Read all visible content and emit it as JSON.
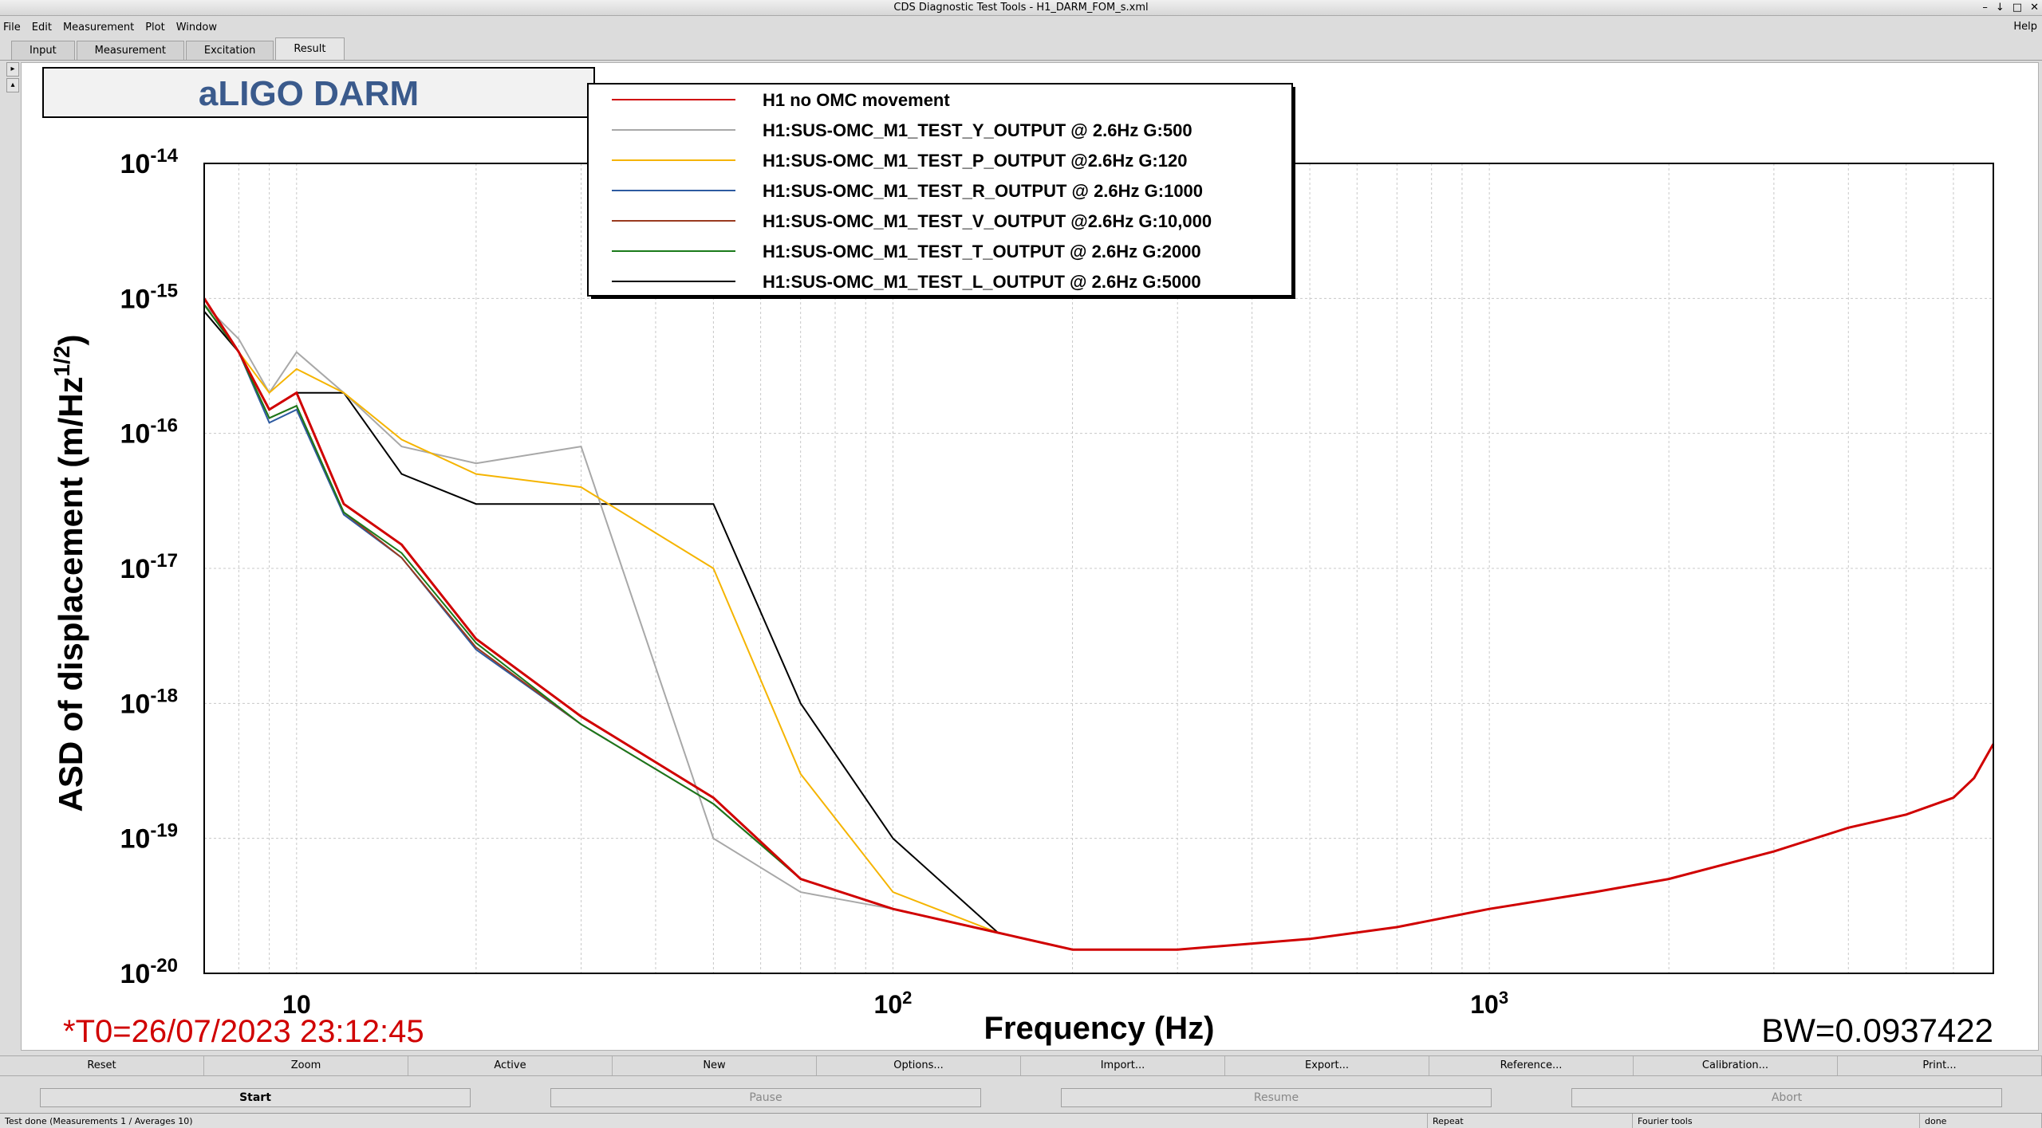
{
  "window": {
    "title": "CDS Diagnostic Test Tools - H1_DARM_FOM_s.xml"
  },
  "menu": {
    "items": [
      "File",
      "Edit",
      "Measurement",
      "Plot",
      "Window"
    ],
    "help": "Help"
  },
  "tabs": [
    "Input",
    "Measurement",
    "Excitation",
    "Result"
  ],
  "active_tab": "Result",
  "plot": {
    "title_box": "aLIGO DARM",
    "t0": "*T0=26/07/2023 23:12:45",
    "bw": "BW=0.0937422"
  },
  "chart_data": {
    "type": "line",
    "title": "aLIGO DARM",
    "xlabel": "Frequency (Hz)",
    "ylabel": "ASD of displacement (m/Hz^1/2)",
    "x_scale": "log",
    "y_scale": "log",
    "xlim": [
      7,
      7000
    ],
    "ylim": [
      1e-20,
      1e-14
    ],
    "x_ticks": [
      "10",
      "10^2",
      "10^3"
    ],
    "y_ticks": [
      "10^-14",
      "10^-15",
      "10^-16",
      "10^-17",
      "10^-18",
      "10^-19",
      "10^-20"
    ],
    "grid": true,
    "legend_position": "top-center",
    "series": [
      {
        "name": "H1 no OMC movement",
        "color": "#d00000",
        "x": [
          7,
          8,
          9,
          10,
          12,
          15,
          20,
          30,
          50,
          70,
          100,
          150,
          200,
          300,
          500,
          700,
          1000,
          1500,
          2000,
          3000,
          4000,
          5000,
          6000,
          6500,
          7000
        ],
        "y": [
          1e-15,
          4e-16,
          1.5e-16,
          2e-16,
          3e-17,
          1.5e-17,
          3e-18,
          8e-19,
          2e-19,
          5e-20,
          3e-20,
          2e-20,
          1.5e-20,
          1.5e-20,
          1.8e-20,
          2.2e-20,
          3e-20,
          4e-20,
          5e-20,
          8e-20,
          1.2e-19,
          1.5e-19,
          2e-19,
          2.8e-19,
          5e-19
        ]
      },
      {
        "name": "H1:SUS-OMC_M1_TEST_Y_OUTPUT @ 2.6Hz G:500",
        "color": "#a8a8a8",
        "x": [
          7,
          8,
          9,
          10,
          12,
          15,
          20,
          30,
          50,
          70,
          100,
          150,
          200,
          300,
          500,
          700,
          1000,
          1500,
          2000,
          3000,
          4000,
          5000,
          6000,
          6500,
          7000
        ],
        "y": [
          9e-16,
          5e-16,
          2e-16,
          4e-16,
          2e-16,
          8e-17,
          6e-17,
          8e-17,
          1e-19,
          4e-20,
          3e-20,
          2e-20,
          1.5e-20,
          1.5e-20,
          1.8e-20,
          2.2e-20,
          3e-20,
          4e-20,
          5e-20,
          8e-20,
          1.2e-19,
          1.5e-19,
          2e-19,
          2.8e-19,
          5e-19
        ]
      },
      {
        "name": "H1:SUS-OMC_M1_TEST_P_OUTPUT @2.6Hz G:120",
        "color": "#f5b400",
        "x": [
          7,
          8,
          9,
          10,
          12,
          15,
          20,
          30,
          50,
          70,
          100,
          150,
          200,
          300,
          500,
          700,
          1000,
          1500,
          2000,
          3000,
          4000,
          5000,
          6000,
          6500,
          7000
        ],
        "y": [
          9e-16,
          4e-16,
          2e-16,
          3e-16,
          2e-16,
          9e-17,
          5e-17,
          4e-17,
          1e-17,
          3e-19,
          4e-20,
          2e-20,
          1.5e-20,
          1.5e-20,
          1.8e-20,
          2.2e-20,
          3e-20,
          4e-20,
          5e-20,
          8e-20,
          1.2e-19,
          1.5e-19,
          2e-19,
          2.8e-19,
          5e-19
        ]
      },
      {
        "name": "H1:SUS-OMC_M1_TEST_R_OUTPUT @ 2.6Hz G:1000",
        "color": "#2d5aa0",
        "x": [
          7,
          8,
          9,
          10,
          12,
          15,
          20,
          30,
          50,
          70,
          100,
          150,
          200,
          300,
          500,
          700,
          1000,
          1500,
          2000,
          3000,
          4000,
          5000,
          6000,
          6500,
          7000
        ],
        "y": [
          9e-16,
          4e-16,
          1.2e-16,
          1.5e-16,
          2.5e-17,
          1.2e-17,
          2.5e-18,
          7e-19,
          1.8e-19,
          5e-20,
          3e-20,
          2e-20,
          1.5e-20,
          1.5e-20,
          1.8e-20,
          2.2e-20,
          3e-20,
          4e-20,
          5e-20,
          8e-20,
          1.2e-19,
          1.5e-19,
          2e-19,
          2.8e-19,
          5e-19
        ]
      },
      {
        "name": "H1:SUS-OMC_M1_TEST_V_OUTPUT @2.6Hz G:10,000",
        "color": "#9a3a20",
        "x": [
          7,
          8,
          9,
          10,
          12,
          15,
          20,
          30,
          50,
          70,
          100,
          150,
          200,
          300,
          500,
          700,
          1000,
          1500,
          2000,
          3000,
          4000,
          5000,
          6000,
          6500,
          7000
        ],
        "y": [
          9e-16,
          4e-16,
          1.3e-16,
          1.6e-16,
          2.6e-17,
          1.2e-17,
          2.6e-18,
          7e-19,
          1.8e-19,
          5e-20,
          3e-20,
          2e-20,
          1.5e-20,
          1.5e-20,
          1.8e-20,
          2.2e-20,
          3e-20,
          4e-20,
          5e-20,
          8e-20,
          1.2e-19,
          1.5e-19,
          2e-19,
          2.8e-19,
          5e-19
        ]
      },
      {
        "name": "H1:SUS-OMC_M1_TEST_T_OUTPUT @ 2.6Hz G:2000",
        "color": "#1a7a1a",
        "x": [
          7,
          8,
          9,
          10,
          12,
          15,
          20,
          30,
          50,
          70,
          100,
          150,
          200,
          300,
          500,
          700,
          1000,
          1500,
          2000,
          3000,
          4000,
          5000,
          6000,
          6500,
          7000
        ],
        "y": [
          9e-16,
          4e-16,
          1.3e-16,
          1.6e-16,
          2.6e-17,
          1.3e-17,
          2.8e-18,
          7e-19,
          1.8e-19,
          5e-20,
          3e-20,
          2e-20,
          1.5e-20,
          1.5e-20,
          1.8e-20,
          2.2e-20,
          3e-20,
          4e-20,
          5e-20,
          8e-20,
          1.2e-19,
          1.5e-19,
          2e-19,
          2.8e-19,
          5e-19
        ]
      },
      {
        "name": "H1:SUS-OMC_M1_TEST_L_OUTPUT @ 2.6Hz G:5000",
        "color": "#000000",
        "x": [
          7,
          8,
          9,
          10,
          12,
          15,
          20,
          30,
          50,
          70,
          100,
          150,
          200,
          300,
          500,
          700,
          1000,
          1500,
          2000,
          3000,
          4000,
          5000,
          6000,
          6500,
          7000
        ],
        "y": [
          8e-16,
          4e-16,
          1.5e-16,
          2e-16,
          2e-16,
          5e-17,
          3e-17,
          3e-17,
          3e-17,
          1e-18,
          1e-19,
          2e-20,
          1.5e-20,
          1.5e-20,
          1.8e-20,
          2.2e-20,
          3e-20,
          4e-20,
          5e-20,
          8e-20,
          1.2e-19,
          1.5e-19,
          2e-19,
          2.8e-19,
          5e-19
        ]
      }
    ]
  },
  "bottom_buttons": [
    "Reset",
    "Zoom",
    "Active",
    "New",
    "Options...",
    "Import...",
    "Export...",
    "Reference...",
    "Calibration...",
    "Print..."
  ],
  "run_buttons": [
    "Start",
    "Pause",
    "Resume",
    "Abort"
  ],
  "status": {
    "left": "Test done (Measurements 1 / Averages 10)",
    "repeat": "Repeat",
    "fourier": "Fourier tools",
    "done": "done"
  }
}
